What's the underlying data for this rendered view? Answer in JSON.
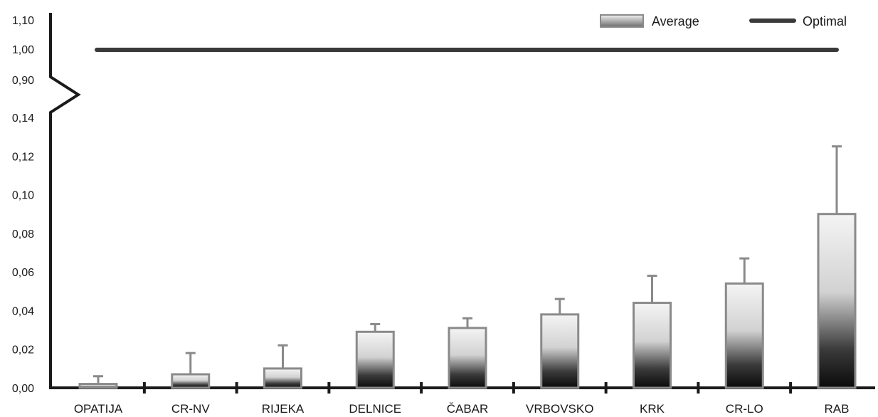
{
  "chart_data": {
    "type": "bar",
    "categories": [
      "OPATIJA",
      "CR-NV",
      "RIJEKA",
      "DELNICE",
      "ČABAR",
      "VRBOVSKO",
      "KRK",
      "CR-LO",
      "RAB"
    ],
    "series": [
      {
        "name": "Average",
        "values": [
          0.002,
          0.007,
          0.01,
          0.029,
          0.031,
          0.038,
          0.044,
          0.054,
          0.09
        ],
        "error_upper": [
          0.006,
          0.018,
          0.022,
          0.033,
          0.036,
          0.046,
          0.058,
          0.067,
          0.125
        ]
      },
      {
        "name": "Optimal",
        "value": 1.0
      }
    ],
    "yaxis": {
      "broken": true,
      "lower_range": [
        0,
        0.14
      ],
      "upper_range": [
        0.9,
        1.1
      ],
      "tick_labels_lower": [
        "0,00",
        "0,02",
        "0,04",
        "0,06",
        "0,08",
        "0,10",
        "0,12",
        "0,14"
      ],
      "tick_labels_upper": [
        "0,90",
        "1,00",
        "1,10"
      ]
    },
    "legend_position": "top-right",
    "grid": false,
    "colors": {
      "axis": "#1a1a1a",
      "bar_border": "#8a8a8a",
      "optimal_line": "#3a3a3a"
    }
  }
}
